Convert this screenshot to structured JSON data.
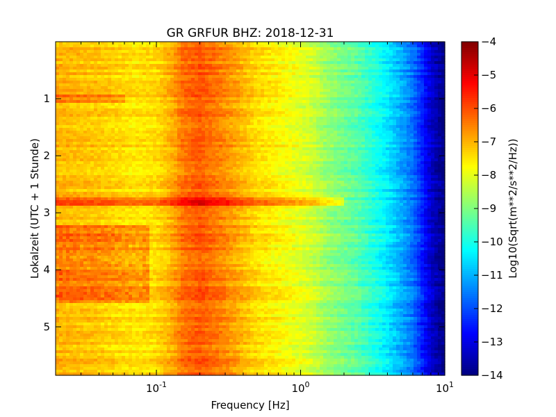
{
  "chart_data": {
    "type": "heatmap",
    "title": "GR GRFUR BHZ: 2018-12-31",
    "xlabel": "Frequency [Hz]",
    "ylabel": "Lokalzeit (UTC + 1 Stunde)",
    "x_scale": "log",
    "xlim": [
      0.02,
      10
    ],
    "ylim": [
      5.85,
      0.0
    ],
    "x_ticks": [
      {
        "value": 0.1,
        "base": "10",
        "exp": "-1"
      },
      {
        "value": 1,
        "base": "10",
        "exp": "0"
      },
      {
        "value": 10,
        "base": "10",
        "exp": "1"
      }
    ],
    "y_ticks": [
      1,
      2,
      3,
      4,
      5
    ],
    "colorbar": {
      "label": "Log10(Sqrt(m**2/s**2/Hz))",
      "range": [
        -14,
        -4
      ],
      "ticks": [
        -4,
        -5,
        -6,
        -7,
        -8,
        -9,
        -10,
        -11,
        -12,
        -13,
        -14
      ],
      "colormap": "jet"
    },
    "profile": {
      "description_values": "typical value vs frequency",
      "freq": [
        0.02,
        0.04,
        0.07,
        0.1,
        0.13,
        0.15,
        0.2,
        0.3,
        0.5,
        0.8,
        1.2,
        1.5,
        2.5,
        4,
        6,
        8,
        10
      ],
      "value": [
        -7.0,
        -7.2,
        -7.5,
        -7.4,
        -6.9,
        -6.4,
        -6.1,
        -6.6,
        -7.4,
        -7.8,
        -8.2,
        -8.7,
        -9.4,
        -10.4,
        -11.6,
        -13.2,
        -14.0
      ]
    },
    "events": [
      {
        "time": 1.0,
        "fmax": 0.06,
        "delta": 0.6
      },
      {
        "time": 2.8,
        "fmax": 2.0,
        "delta": 1.1
      },
      {
        "time_start": 3.2,
        "time_end": 4.6,
        "fmax": 0.09,
        "delta": 0.9
      }
    ]
  }
}
